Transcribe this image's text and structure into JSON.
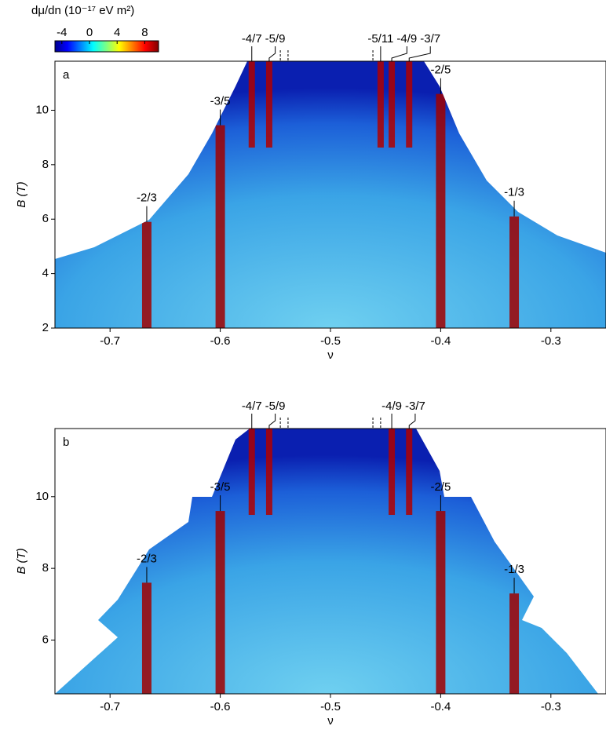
{
  "colorbar": {
    "title": "dμ/dn (10⁻¹⁷ eV m²)",
    "clim": [
      -5,
      10
    ],
    "ticks": [
      -4,
      0,
      4,
      8
    ]
  },
  "chart_data": [
    {
      "type": "heatmap",
      "panel_label": "a",
      "xlabel": "ν",
      "ylabel": "B (T)",
      "xlim": [
        -0.75,
        -0.25
      ],
      "ylim": [
        2,
        11.8
      ],
      "xticks": [
        -0.7,
        -0.6,
        -0.5,
        -0.4,
        -0.3
      ],
      "yticks": [
        2,
        4,
        6,
        8,
        10
      ],
      "top_labels": [
        {
          "label": "-4/7",
          "nu": -0.5714
        },
        {
          "label": "-5/9",
          "nu": -0.5556
        },
        {
          "label": "-5/11",
          "nu": -0.4545
        },
        {
          "label": "-4/9",
          "nu": -0.4444
        },
        {
          "label": "-3/7",
          "nu": -0.4286
        }
      ],
      "dashed_lines": [
        -0.5455,
        -0.5385,
        -0.4615
      ],
      "inner_labels": [
        {
          "label": "-3/5",
          "nu": -0.6,
          "b": 9.45
        },
        {
          "label": "-2/5",
          "nu": -0.4,
          "b": 10.6
        },
        {
          "label": "-2/3",
          "nu": -0.6667,
          "b": 5.9
        },
        {
          "label": "-1/3",
          "nu": -0.3333,
          "b": 6.1
        }
      ]
    },
    {
      "type": "heatmap",
      "panel_label": "b",
      "xlabel": "ν",
      "ylabel": "B (T)",
      "xlim": [
        -0.75,
        -0.25
      ],
      "ylim": [
        4.5,
        11.9
      ],
      "xticks": [
        -0.7,
        -0.6,
        -0.5,
        -0.4,
        -0.3
      ],
      "yticks": [
        6,
        8,
        10
      ],
      "top_labels": [
        {
          "label": "-4/7",
          "nu": -0.5714
        },
        {
          "label": "-5/9",
          "nu": -0.5556
        },
        {
          "label": "-4/9",
          "nu": -0.4444
        },
        {
          "label": "-3/7",
          "nu": -0.4286
        }
      ],
      "dashed_lines": [
        -0.5455,
        -0.5385,
        -0.4615,
        -0.4545
      ],
      "inner_labels": [
        {
          "label": "-3/5",
          "nu": -0.6,
          "b": 9.6
        },
        {
          "label": "-2/5",
          "nu": -0.4,
          "b": 9.6
        },
        {
          "label": "-2/3",
          "nu": -0.6667,
          "b": 7.6
        },
        {
          "label": "-1/3",
          "nu": -0.3333,
          "b": 7.3
        }
      ]
    }
  ]
}
